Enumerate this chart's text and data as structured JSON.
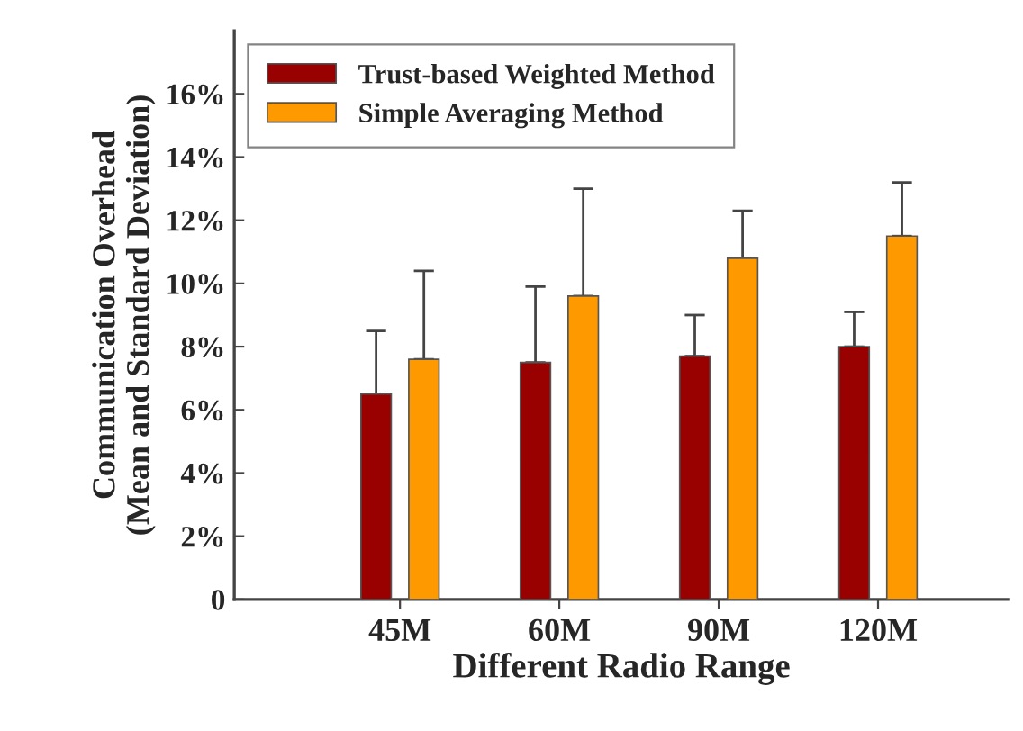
{
  "chart_data": {
    "type": "bar",
    "xlabel": "Different Radio Range",
    "ylabel": "Communication Overhead\n(Mean and Standard Deviation)",
    "categories": [
      "45M",
      "60M",
      "90M",
      "120M"
    ],
    "series": [
      {
        "name": "Trust-based Weighted Method",
        "color": "#990000",
        "values": [
          6.5,
          7.5,
          7.7,
          8.0
        ],
        "errors": [
          [
            6.5,
            8.5
          ],
          [
            7.5,
            9.9
          ],
          [
            7.7,
            9.0
          ],
          [
            8.0,
            9.1
          ]
        ]
      },
      {
        "name": "Simple Averaging Method",
        "color": "#ff9900",
        "values": [
          7.6,
          9.6,
          10.8,
          11.5
        ],
        "errors": [
          [
            7.6,
            10.4
          ],
          [
            9.6,
            13.0
          ],
          [
            10.8,
            12.3
          ],
          [
            11.5,
            13.2
          ]
        ]
      }
    ],
    "ylim": [
      0,
      18
    ],
    "yticks": [
      {
        "value": 0,
        "label": "0"
      },
      {
        "value": 2,
        "label": "2%"
      },
      {
        "value": 4,
        "label": "4%"
      },
      {
        "value": 6,
        "label": "6%"
      },
      {
        "value": 8,
        "label": "8%"
      },
      {
        "value": 10,
        "label": "10%"
      },
      {
        "value": 12,
        "label": "12%"
      },
      {
        "value": 14,
        "label": "14%"
      },
      {
        "value": 16,
        "label": "16%"
      }
    ],
    "grid": false,
    "legend": "top left"
  }
}
